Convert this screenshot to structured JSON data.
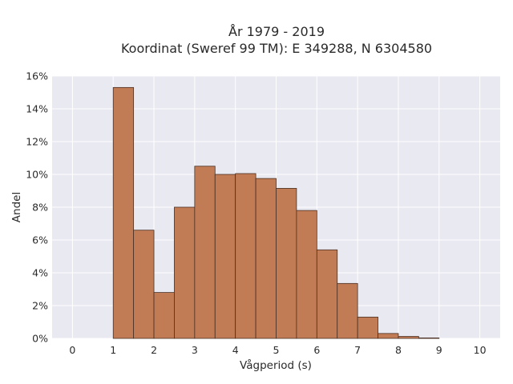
{
  "chart_data": {
    "type": "bar",
    "title_line1": "År 1979 - 2019",
    "title_line2": "Koordinat (Sweref 99 TM): E 349288, N 6304580",
    "xlabel": "Vågperiod (s)",
    "ylabel": "Andel",
    "xlim": [
      -0.5,
      10.5
    ],
    "ylim": [
      0,
      16
    ],
    "xticks": [
      "0",
      "1",
      "2",
      "3",
      "4",
      "5",
      "6",
      "7",
      "8",
      "9",
      "10"
    ],
    "yticks": [
      "0%",
      "2%",
      "4%",
      "6%",
      "8%",
      "10%",
      "12%",
      "14%",
      "16%"
    ],
    "bin_width": 0.5,
    "bins": [
      {
        "start": 1.0,
        "value": 15.3
      },
      {
        "start": 1.5,
        "value": 6.6
      },
      {
        "start": 2.0,
        "value": 2.8
      },
      {
        "start": 2.5,
        "value": 8.0
      },
      {
        "start": 3.0,
        "value": 10.5
      },
      {
        "start": 3.5,
        "value": 10.0
      },
      {
        "start": 4.0,
        "value": 10.05
      },
      {
        "start": 4.5,
        "value": 9.75
      },
      {
        "start": 5.0,
        "value": 9.15
      },
      {
        "start": 5.5,
        "value": 7.8
      },
      {
        "start": 6.0,
        "value": 5.4
      },
      {
        "start": 6.5,
        "value": 3.35
      },
      {
        "start": 7.0,
        "value": 1.3
      },
      {
        "start": 7.5,
        "value": 0.3
      },
      {
        "start": 8.0,
        "value": 0.12
      },
      {
        "start": 8.5,
        "value": 0.03
      }
    ],
    "bar_color": "#c17c55",
    "bar_edge_color": "#4a2f22",
    "plot_background": "#e9e9f1",
    "grid": true,
    "grid_color": "#ffffff",
    "legend": "none"
  }
}
